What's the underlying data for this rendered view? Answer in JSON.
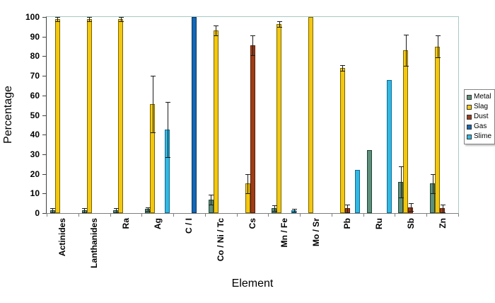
{
  "chart_data": {
    "type": "bar",
    "title": "",
    "xlabel": "Element",
    "ylabel": "Percentage",
    "ylim": [
      0,
      100
    ],
    "yticks": [
      0,
      10,
      20,
      30,
      40,
      50,
      60,
      70,
      80,
      90,
      100
    ],
    "grid": false,
    "legend_position": "right",
    "categories": [
      "Actinides",
      "Lanthanides",
      "Ra",
      "Ag",
      "C / I",
      "Co / Ni / Tc",
      "Cs",
      "Mn / Fe",
      "Mo / Sr",
      "Pb",
      "Ru",
      "Sb",
      "Zn"
    ],
    "series": [
      {
        "name": "Metal",
        "color": "#5e8f7b",
        "border_color": "#1e4537",
        "values": [
          1.5,
          1.5,
          1.5,
          2,
          0,
          7,
          0,
          2.5,
          0,
          0,
          32,
          16,
          15
        ],
        "errors": [
          1,
          1,
          1,
          1,
          0,
          2.5,
          0,
          1.5,
          0,
          0,
          0,
          8,
          5
        ]
      },
      {
        "name": "Slag",
        "color": "#f3c70f",
        "border_color": "#7a6300",
        "values": [
          99,
          99,
          99,
          55.5,
          0,
          93,
          15,
          96.5,
          100,
          74,
          0,
          83,
          85
        ],
        "errors": [
          1,
          1,
          1,
          14.5,
          0,
          2.5,
          5,
          1.5,
          0,
          1.5,
          0,
          8,
          5.5
        ]
      },
      {
        "name": "Dust",
        "color": "#a03c14",
        "border_color": "#571e07",
        "values": [
          0,
          0,
          0,
          0,
          0,
          0,
          85.5,
          0,
          0,
          2.5,
          0,
          3,
          2.5
        ],
        "errors": [
          0,
          0,
          0,
          0,
          0,
          0,
          5,
          0,
          0,
          2,
          0,
          2,
          2
        ]
      },
      {
        "name": "Gas",
        "color": "#1467b3",
        "border_color": "#0a3662",
        "values": [
          0,
          0,
          0,
          0,
          100,
          0,
          0,
          0,
          0,
          0,
          0,
          0,
          0
        ],
        "errors": [
          0,
          0,
          0,
          0,
          0,
          0,
          0,
          0,
          0,
          0,
          0,
          0,
          0
        ]
      },
      {
        "name": "Slime",
        "color": "#2fb9e3",
        "border_color": "#146890",
        "values": [
          0,
          0,
          0,
          42.5,
          0,
          0,
          0,
          1.5,
          0,
          22,
          68,
          0,
          0
        ],
        "errors": [
          0,
          0,
          0,
          14,
          0,
          0,
          0,
          0.8,
          0,
          0,
          0,
          0,
          0
        ]
      }
    ],
    "colors": {
      "plot_border_top_right": "#a8c8c4",
      "axis_left": "#404040",
      "axis_bottom": "#7e7e7e",
      "error_bar": "#1a1a1a",
      "background": "#ffffff"
    }
  }
}
